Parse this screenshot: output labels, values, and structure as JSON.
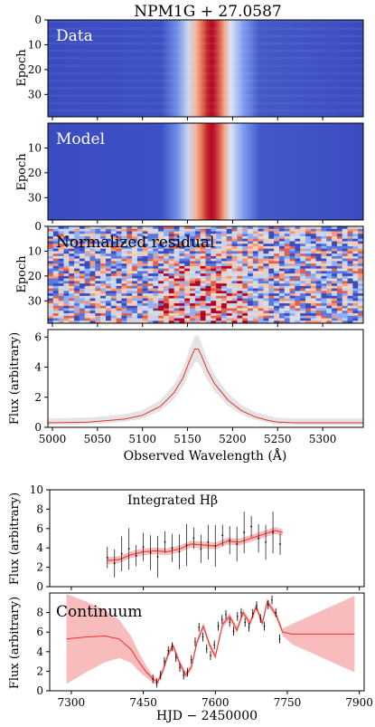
{
  "figure": {
    "title": "NPM1G + 27.0587"
  },
  "heatmaps": [
    {
      "id": "data",
      "label": "Data",
      "ylabel": "Epoch",
      "yticks": [
        "0",
        "10",
        "20",
        "30"
      ],
      "epochs": 39,
      "ylim": [
        0,
        39
      ]
    },
    {
      "id": "model",
      "label": "Model",
      "ylabel": "Epoch",
      "yticks": [
        "10",
        "20",
        "30"
      ],
      "epochs": 39,
      "ylim": [
        0,
        39
      ]
    },
    {
      "id": "residual",
      "label": "Normalized residual",
      "ylabel": "Epoch",
      "yticks": [
        "0",
        "10",
        "20",
        "30"
      ],
      "epochs": 39,
      "ylim": [
        0,
        39
      ]
    }
  ],
  "spectrum": {
    "ylabel": "Flux (arbitrary)",
    "xlabel": "Observed Wavelength (Å)",
    "xlim": [
      4995,
      5345
    ],
    "ylim": [
      0,
      6.5
    ],
    "xticks": [
      "5000",
      "5050",
      "5100",
      "5150",
      "5200",
      "5250",
      "5300"
    ],
    "yticks": [
      "0",
      "2",
      "4",
      "6"
    ]
  },
  "hbeta": {
    "label": "Integrated Hβ",
    "ylabel": "Flux (arbitrary)",
    "ylim": [
      0,
      10
    ],
    "yticks": [
      "0",
      "2",
      "4",
      "6",
      "8",
      "10"
    ]
  },
  "continuum": {
    "label": "Continuum",
    "ylabel": "Flux (arbitrary)",
    "xlabel": "HJD − 2450000",
    "ylim": [
      0,
      10
    ],
    "yticks": [
      "0",
      "2",
      "4",
      "6",
      "8"
    ],
    "xticks": [
      "7300",
      "7450",
      "7600",
      "7750",
      "7900"
    ]
  },
  "timing": {
    "xlim": [
      7255,
      7910
    ]
  },
  "chart_data": [
    {
      "type": "heatmap",
      "title": "Data",
      "ylabel": "Epoch",
      "x_axis": "Observed Wavelength (Å)",
      "xlim": [
        4995,
        5345
      ],
      "ylim": [
        0,
        39
      ],
      "emission_line_center": 5160,
      "colormap": "coolwarm"
    },
    {
      "type": "heatmap",
      "title": "Model",
      "ylabel": "Epoch",
      "xlim": [
        4995,
        5345
      ],
      "ylim": [
        0,
        39
      ],
      "emission_line_center": 5160,
      "colormap": "coolwarm"
    },
    {
      "type": "heatmap",
      "title": "Normalized residual",
      "ylabel": "Epoch",
      "xlim": [
        4995,
        5345
      ],
      "ylim": [
        0,
        39
      ],
      "colormap": "coolwarm"
    },
    {
      "type": "line",
      "xlabel": "Observed Wavelength (Å)",
      "ylabel": "Flux (arbitrary)",
      "xlim": [
        4995,
        5345
      ],
      "ylim": [
        0,
        6.5
      ],
      "series": [
        {
          "x": [
            4995,
            5040,
            5080,
            5100,
            5120,
            5135,
            5145,
            5152,
            5158,
            5162,
            5166,
            5172,
            5180,
            5195,
            5210,
            5225,
            5240,
            5250,
            5270,
            5300,
            5345
          ],
          "y": [
            0.3,
            0.35,
            0.55,
            0.8,
            1.4,
            2.3,
            3.3,
            4.4,
            5.2,
            5.2,
            4.7,
            3.8,
            2.9,
            1.8,
            1.1,
            0.7,
            0.45,
            0.35,
            0.3,
            0.3,
            0.3
          ]
        }
      ]
    },
    {
      "type": "scatter",
      "title": "Integrated Hβ",
      "ylabel": "Flux (arbitrary)",
      "ylim": [
        0,
        10
      ],
      "x": [
        7375,
        7390,
        7405,
        7420,
        7435,
        7450,
        7465,
        7480,
        7495,
        7510,
        7525,
        7540,
        7555,
        7570,
        7585,
        7600,
        7615,
        7630,
        7645,
        7660,
        7675,
        7690,
        7705,
        7720,
        7735
      ],
      "y": [
        3.0,
        2.4,
        3.4,
        3.9,
        3.2,
        4.1,
        3.5,
        3.1,
        4.6,
        4.0,
        3.6,
        4.3,
        5.0,
        3.9,
        4.6,
        4.2,
        5.3,
        4.8,
        4.4,
        5.6,
        6.2,
        5.0,
        4.6,
        5.6,
        4.4
      ],
      "model": {
        "x": [
          7375,
          7400,
          7425,
          7450,
          7475,
          7500,
          7525,
          7550,
          7575,
          7600,
          7625,
          7650,
          7675,
          7700,
          7725,
          7740
        ],
        "y": [
          2.7,
          2.8,
          3.3,
          3.6,
          3.7,
          3.6,
          3.9,
          4.4,
          4.3,
          4.2,
          4.7,
          4.6,
          5.0,
          5.4,
          5.8,
          5.6
        ]
      }
    },
    {
      "type": "line",
      "title": "Continuum",
      "xlabel": "HJD − 2450000",
      "ylabel": "Flux (arbitrary)",
      "ylim": [
        0,
        10
      ],
      "model": {
        "x": [
          7290,
          7330,
          7370,
          7400,
          7425,
          7440,
          7455,
          7470,
          7480,
          7492,
          7502,
          7512,
          7525,
          7538,
          7550,
          7562,
          7575,
          7588,
          7600,
          7615,
          7630,
          7645,
          7658,
          7672,
          7685,
          7698,
          7708,
          7718,
          7728,
          7740,
          7760,
          7800,
          7850,
          7890
        ],
        "y": [
          5.3,
          5.5,
          5.6,
          5.3,
          4.2,
          3.0,
          2.0,
          1.2,
          0.9,
          2.2,
          3.8,
          4.6,
          2.9,
          1.6,
          2.4,
          5.0,
          6.6,
          4.7,
          3.5,
          6.8,
          7.6,
          6.2,
          8.0,
          6.9,
          8.6,
          6.9,
          9.1,
          8.4,
          7.6,
          6.0,
          5.8,
          5.8,
          5.8,
          5.8
        ]
      },
      "data": {
        "x": [
          7470,
          7478,
          7486,
          7494,
          7502,
          7510,
          7518,
          7526,
          7534,
          7542,
          7550,
          7558,
          7566,
          7574,
          7582,
          7590,
          7598,
          7606,
          7614,
          7622,
          7630,
          7638,
          7646,
          7654,
          7662,
          7670,
          7678,
          7686,
          7694,
          7702,
          7710,
          7718,
          7726,
          7734
        ],
        "y": [
          1.2,
          0.8,
          1.6,
          3.0,
          4.1,
          4.5,
          3.4,
          2.4,
          1.6,
          1.9,
          3.2,
          5.0,
          6.5,
          5.5,
          4.3,
          3.6,
          4.7,
          6.6,
          7.3,
          7.8,
          7.0,
          6.1,
          7.6,
          8.0,
          7.0,
          6.5,
          7.9,
          8.7,
          7.4,
          6.6,
          8.8,
          9.3,
          8.0,
          5.3
        ]
      }
    }
  ]
}
